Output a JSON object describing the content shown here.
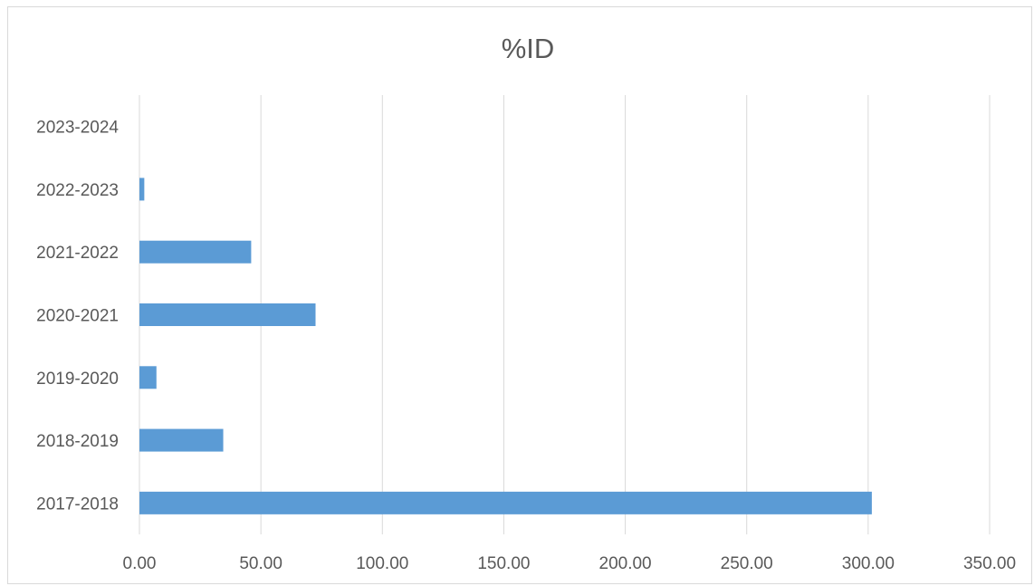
{
  "chart_data": {
    "type": "bar",
    "orientation": "horizontal",
    "title": "%ID",
    "xlabel": "",
    "ylabel": "",
    "categories": [
      "2017-2018",
      "2018-2019",
      "2019-2020",
      "2020-2021",
      "2021-2022",
      "2022-2023",
      "2023-2024"
    ],
    "values": [
      301.5,
      34.5,
      7.0,
      72.5,
      46.0,
      2.0,
      0
    ],
    "xlim": [
      0,
      350
    ],
    "x_ticks": [
      "0.00",
      "50.00",
      "100.00",
      "150.00",
      "200.00",
      "250.00",
      "300.00",
      "350.00"
    ],
    "grid": "vertical",
    "legend": "none",
    "bar_color": "#5b9bd5",
    "grid_color": "#d9d9d9",
    "text_color": "#595959"
  }
}
